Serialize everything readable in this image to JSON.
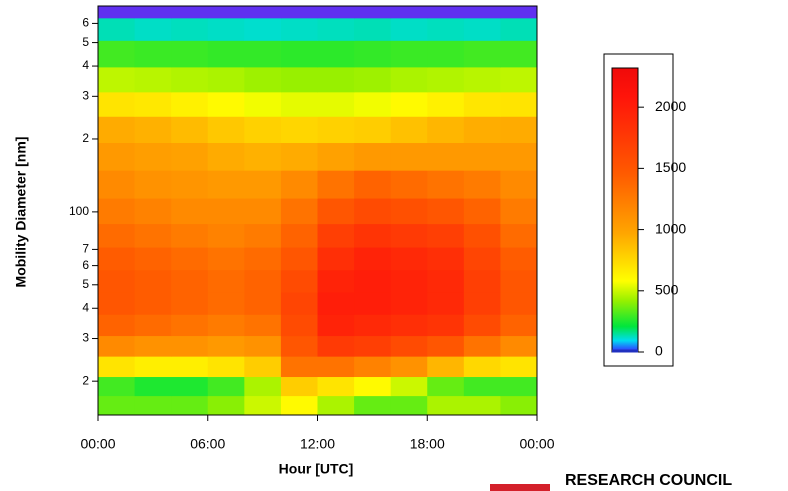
{
  "chart_data": {
    "type": "heatmap",
    "ylabel": "Mobility Diameter [nm]",
    "xlabel": "Hour [UTC]",
    "x": [
      1,
      3,
      5,
      7,
      9,
      11,
      13,
      15,
      17,
      19,
      21,
      23
    ],
    "y": [
      16,
      19,
      23,
      28,
      34,
      42,
      52,
      64,
      80,
      100,
      130,
      170,
      220,
      280,
      350,
      450,
      580,
      690
    ],
    "z": [
      [
        350,
        350,
        350,
        400,
        500,
        600,
        450,
        350,
        350,
        450,
        450,
        400
      ],
      [
        300,
        250,
        250,
        300,
        450,
        800,
        700,
        600,
        500,
        350,
        300,
        300
      ],
      [
        700,
        650,
        650,
        700,
        800,
        1300,
        1300,
        1200,
        1100,
        900,
        750,
        700
      ],
      [
        1150,
        1100,
        1100,
        1050,
        1100,
        1500,
        1750,
        1700,
        1600,
        1500,
        1300,
        1150
      ],
      [
        1400,
        1350,
        1300,
        1250,
        1300,
        1600,
        1950,
        1900,
        1850,
        1800,
        1600,
        1400
      ],
      [
        1500,
        1450,
        1400,
        1350,
        1400,
        1650,
        2000,
        2000,
        1950,
        1900,
        1700,
        1500
      ],
      [
        1500,
        1450,
        1400,
        1350,
        1400,
        1600,
        1950,
        2000,
        1950,
        1900,
        1700,
        1500
      ],
      [
        1450,
        1400,
        1350,
        1300,
        1350,
        1500,
        1850,
        1950,
        1900,
        1850,
        1650,
        1450
      ],
      [
        1350,
        1300,
        1250,
        1200,
        1250,
        1400,
        1700,
        1800,
        1750,
        1700,
        1550,
        1350
      ],
      [
        1250,
        1200,
        1150,
        1150,
        1150,
        1300,
        1500,
        1600,
        1550,
        1500,
        1400,
        1250
      ],
      [
        1150,
        1100,
        1080,
        1050,
        1050,
        1150,
        1300,
        1400,
        1350,
        1300,
        1250,
        1150
      ],
      [
        1050,
        1020,
        1000,
        950,
        920,
        950,
        1000,
        1050,
        1050,
        1050,
        1050,
        1050
      ],
      [
        950,
        920,
        880,
        820,
        780,
        760,
        780,
        800,
        850,
        900,
        940,
        950
      ],
      [
        700,
        680,
        640,
        600,
        560,
        540,
        540,
        560,
        600,
        640,
        690,
        700
      ],
      [
        480,
        470,
        460,
        450,
        430,
        420,
        420,
        430,
        450,
        460,
        470,
        480
      ],
      [
        300,
        290,
        290,
        280,
        280,
        270,
        270,
        280,
        290,
        290,
        300,
        300
      ],
      [
        130,
        120,
        125,
        120,
        115,
        120,
        125,
        130,
        120,
        125,
        120,
        130
      ],
      [
        0,
        0,
        0,
        0,
        0,
        0,
        0,
        0,
        0,
        0,
        0,
        0
      ]
    ],
    "xlim": [
      0,
      24
    ],
    "xticks": [
      {
        "value": 0,
        "label": "00:00"
      },
      {
        "value": 6,
        "label": "06:00"
      },
      {
        "value": 12,
        "label": "12:00"
      },
      {
        "value": 18,
        "label": "18:00"
      },
      {
        "value": 24,
        "label": "00:00"
      }
    ],
    "ylim": [
      14.5,
      708
    ],
    "log_y": true,
    "yticks": [
      {
        "value": 20,
        "label": "2"
      },
      {
        "value": 30,
        "label": "3"
      },
      {
        "value": 40,
        "label": "4"
      },
      {
        "value": 50,
        "label": "5"
      },
      {
        "value": 60,
        "label": "6"
      },
      {
        "value": 70,
        "label": "7"
      },
      100,
      {
        "value": 200,
        "label": "2"
      },
      {
        "value": 300,
        "label": "3"
      },
      {
        "value": 400,
        "label": "4"
      },
      {
        "value": 500,
        "label": "5"
      },
      {
        "value": 600,
        "label": "6"
      }
    ],
    "colorbar": {
      "lim": [
        0,
        2320
      ],
      "ticks": [
        0,
        500,
        1000,
        1500,
        2000
      ]
    }
  },
  "footer": {
    "logo": "RESEARCH COUNCIL"
  }
}
